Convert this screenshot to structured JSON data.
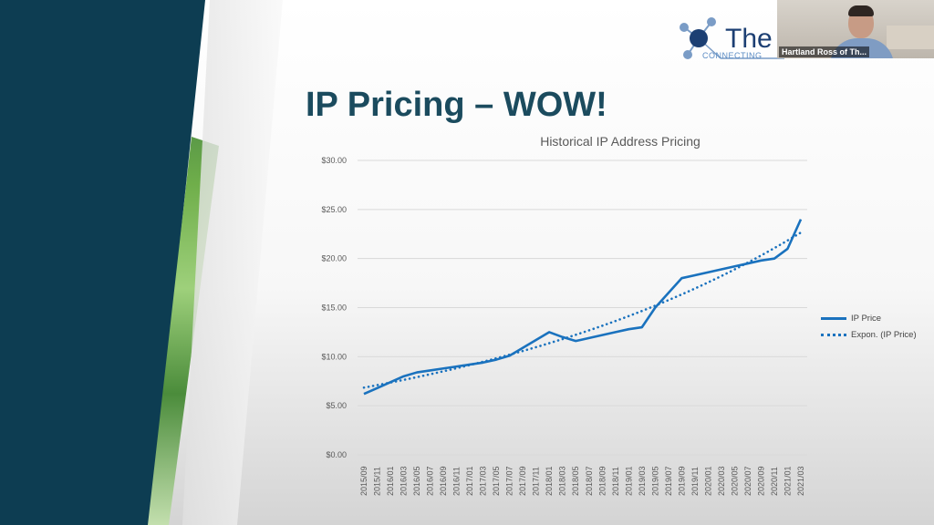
{
  "slide": {
    "title": "IP Pricing – WOW!",
    "logo_text": "The I",
    "logo_subtitle": "CONNECTING"
  },
  "video": {
    "participant_name": "Hartland Ross of Th..."
  },
  "colors": {
    "series": "#1a72be",
    "title": "#1b4b5e",
    "panel": "#0d3d52"
  },
  "chart_data": {
    "type": "line",
    "title": "Historical IP Address Pricing",
    "xlabel": "",
    "ylabel": "",
    "ylim": [
      0,
      30
    ],
    "yticks": [
      0,
      5,
      10,
      15,
      20,
      25,
      30
    ],
    "ytick_labels": [
      "$0.00",
      "$5.00",
      "$10.00",
      "$15.00",
      "$20.00",
      "$25.00",
      "$30.00"
    ],
    "grid": true,
    "legend_position": "right",
    "categories": [
      "2015/09",
      "2015/11",
      "2016/01",
      "2016/03",
      "2016/05",
      "2016/07",
      "2016/09",
      "2016/11",
      "2017/01",
      "2017/03",
      "2017/05",
      "2017/07",
      "2017/09",
      "2017/11",
      "2018/01",
      "2018/03",
      "2018/05",
      "2018/07",
      "2018/09",
      "2018/11",
      "2019/01",
      "2019/03",
      "2019/05",
      "2019/07",
      "2019/09",
      "2019/11",
      "2020/01",
      "2020/03",
      "2020/05",
      "2020/07",
      "2020/09",
      "2020/11",
      "2021/01",
      "2021/03"
    ],
    "series": [
      {
        "name": "IP Price",
        "style": "solid",
        "values": [
          6.2,
          6.8,
          7.4,
          8.0,
          8.4,
          8.6,
          8.8,
          9.0,
          9.2,
          9.4,
          9.7,
          10.1,
          10.9,
          11.7,
          12.5,
          12.0,
          11.6,
          11.9,
          12.2,
          12.5,
          12.8,
          13.0,
          15.0,
          16.5,
          18.0,
          18.3,
          18.6,
          18.9,
          19.2,
          19.5,
          19.8,
          20.0,
          21.0,
          24.0
        ]
      },
      {
        "name": "Expon. (IP Price)",
        "style": "dotted",
        "trendline_of": "IP Price"
      }
    ]
  }
}
